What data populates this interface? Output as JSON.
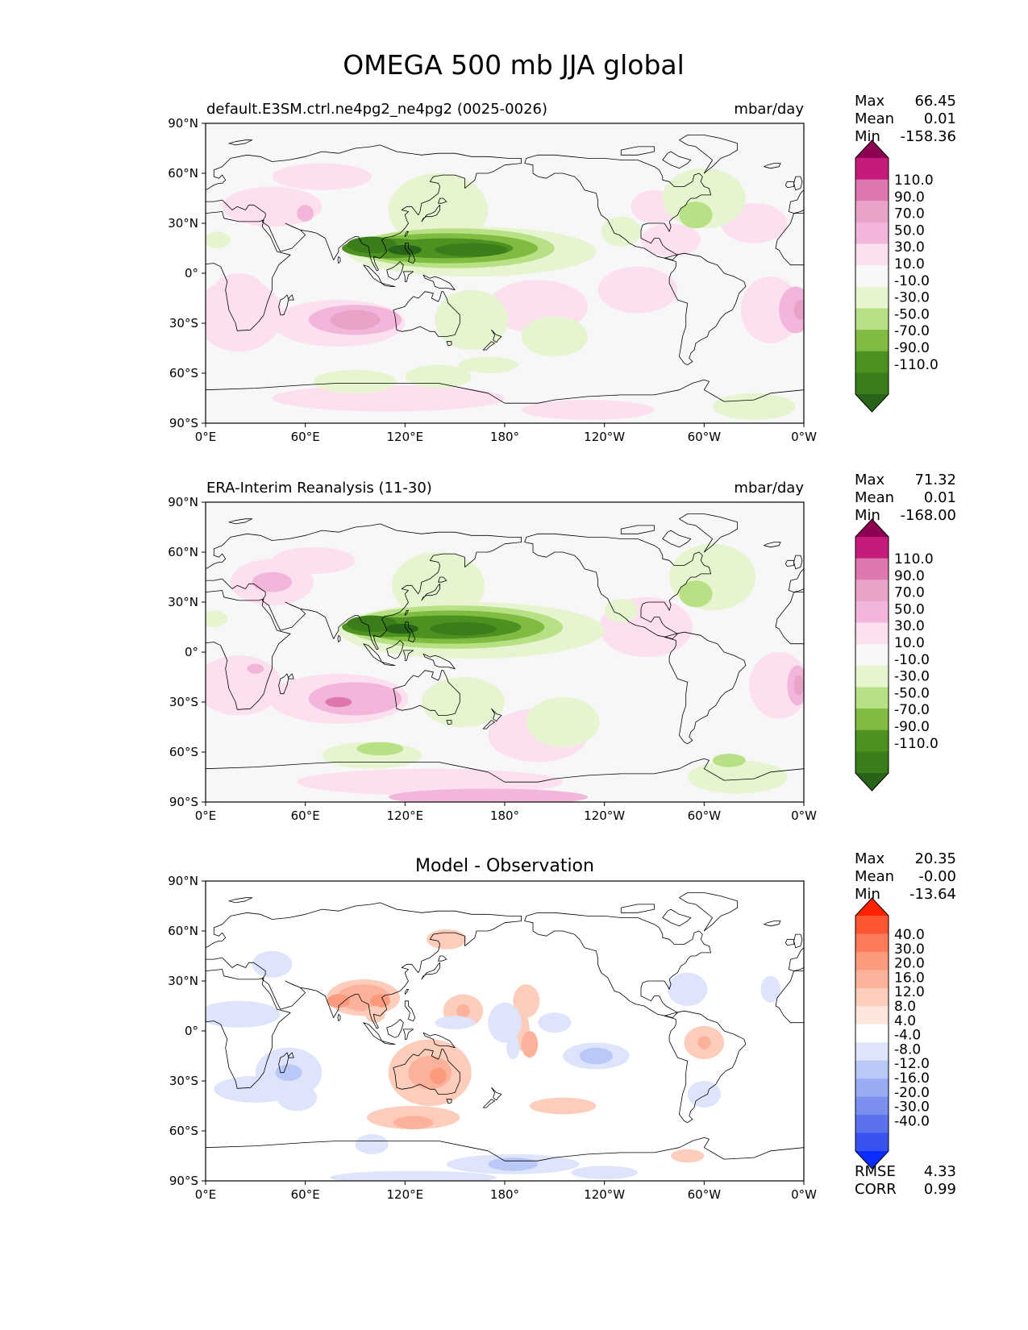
{
  "figure": {
    "title": "OMEGA 500 mb JJA global"
  },
  "axes": {
    "lat_ticks": [
      "90°N",
      "60°N",
      "30°N",
      "0°",
      "30°S",
      "60°S",
      "90°S"
    ],
    "lon_ticks": [
      "0°E",
      "60°E",
      "120°E",
      "180°",
      "120°W",
      "60°W",
      "0°W"
    ]
  },
  "panels": [
    {
      "id": "test",
      "title_left": "default.E3SM.ctrl.ne4pg2_ne4pg2 (0025-0026)",
      "title_center": "",
      "units": "mbar/day",
      "stats": [
        {
          "label": "Max",
          "value": "66.45"
        },
        {
          "label": "Mean",
          "value": "0.01"
        },
        {
          "label": "Min",
          "value": "-158.36"
        }
      ],
      "colorbar": {
        "labels": [
          "110.0",
          "90.0",
          "70.0",
          "50.0",
          "30.0",
          "10.0",
          "-10.0",
          "-30.0",
          "-50.0",
          "-70.0",
          "-90.0",
          "-110.0"
        ],
        "colors": [
          "#8e0152",
          "#c51b7d",
          "#de77ae",
          "#e9a3c9",
          "#f1b6da",
          "#fde0ef",
          "#f7f7f7",
          "#e6f5d0",
          "#b8e186",
          "#7fbc41",
          "#4d9221",
          "#3a7d1a",
          "#276419"
        ]
      },
      "footer": []
    },
    {
      "id": "reference",
      "title_left": "ERA-Interim Reanalysis (11-30)",
      "title_center": "",
      "units": "mbar/day",
      "stats": [
        {
          "label": "Max",
          "value": "71.32"
        },
        {
          "label": "Mean",
          "value": "0.01"
        },
        {
          "label": "Min",
          "value": "-168.00"
        }
      ],
      "colorbar": {
        "labels": [
          "110.0",
          "90.0",
          "70.0",
          "50.0",
          "30.0",
          "10.0",
          "-10.0",
          "-30.0",
          "-50.0",
          "-70.0",
          "-90.0",
          "-110.0"
        ],
        "colors": [
          "#8e0152",
          "#c51b7d",
          "#de77ae",
          "#e9a3c9",
          "#f1b6da",
          "#fde0ef",
          "#f7f7f7",
          "#e6f5d0",
          "#b8e186",
          "#7fbc41",
          "#4d9221",
          "#3a7d1a",
          "#276419"
        ]
      },
      "footer": []
    },
    {
      "id": "diff",
      "title_left": "",
      "title_center": "Model - Observation",
      "units": "",
      "stats": [
        {
          "label": "Max",
          "value": "20.35"
        },
        {
          "label": "Mean",
          "value": "-0.00"
        },
        {
          "label": "Min",
          "value": "-13.64"
        }
      ],
      "colorbar": {
        "labels": [
          "40.0",
          "30.0",
          "20.0",
          "16.0",
          "12.0",
          "8.0",
          "4.0",
          "-4.0",
          "-8.0",
          "-12.0",
          "-16.0",
          "-20.0",
          "-30.0",
          "-40.0"
        ],
        "colors": [
          "#ff2200",
          "#ff5533",
          "#fb7b58",
          "#fb9a7d",
          "#fcb29a",
          "#fdcdbb",
          "#fde7dd",
          "#ffffff",
          "#dde4fb",
          "#bac8f8",
          "#9aabf3",
          "#7b8ff0",
          "#5a72ee",
          "#3852f0",
          "#0a2cff"
        ]
      },
      "footer": [
        {
          "label": "RMSE",
          "value": "4.33"
        },
        {
          "label": "CORR",
          "value": "0.99"
        }
      ]
    }
  ]
}
